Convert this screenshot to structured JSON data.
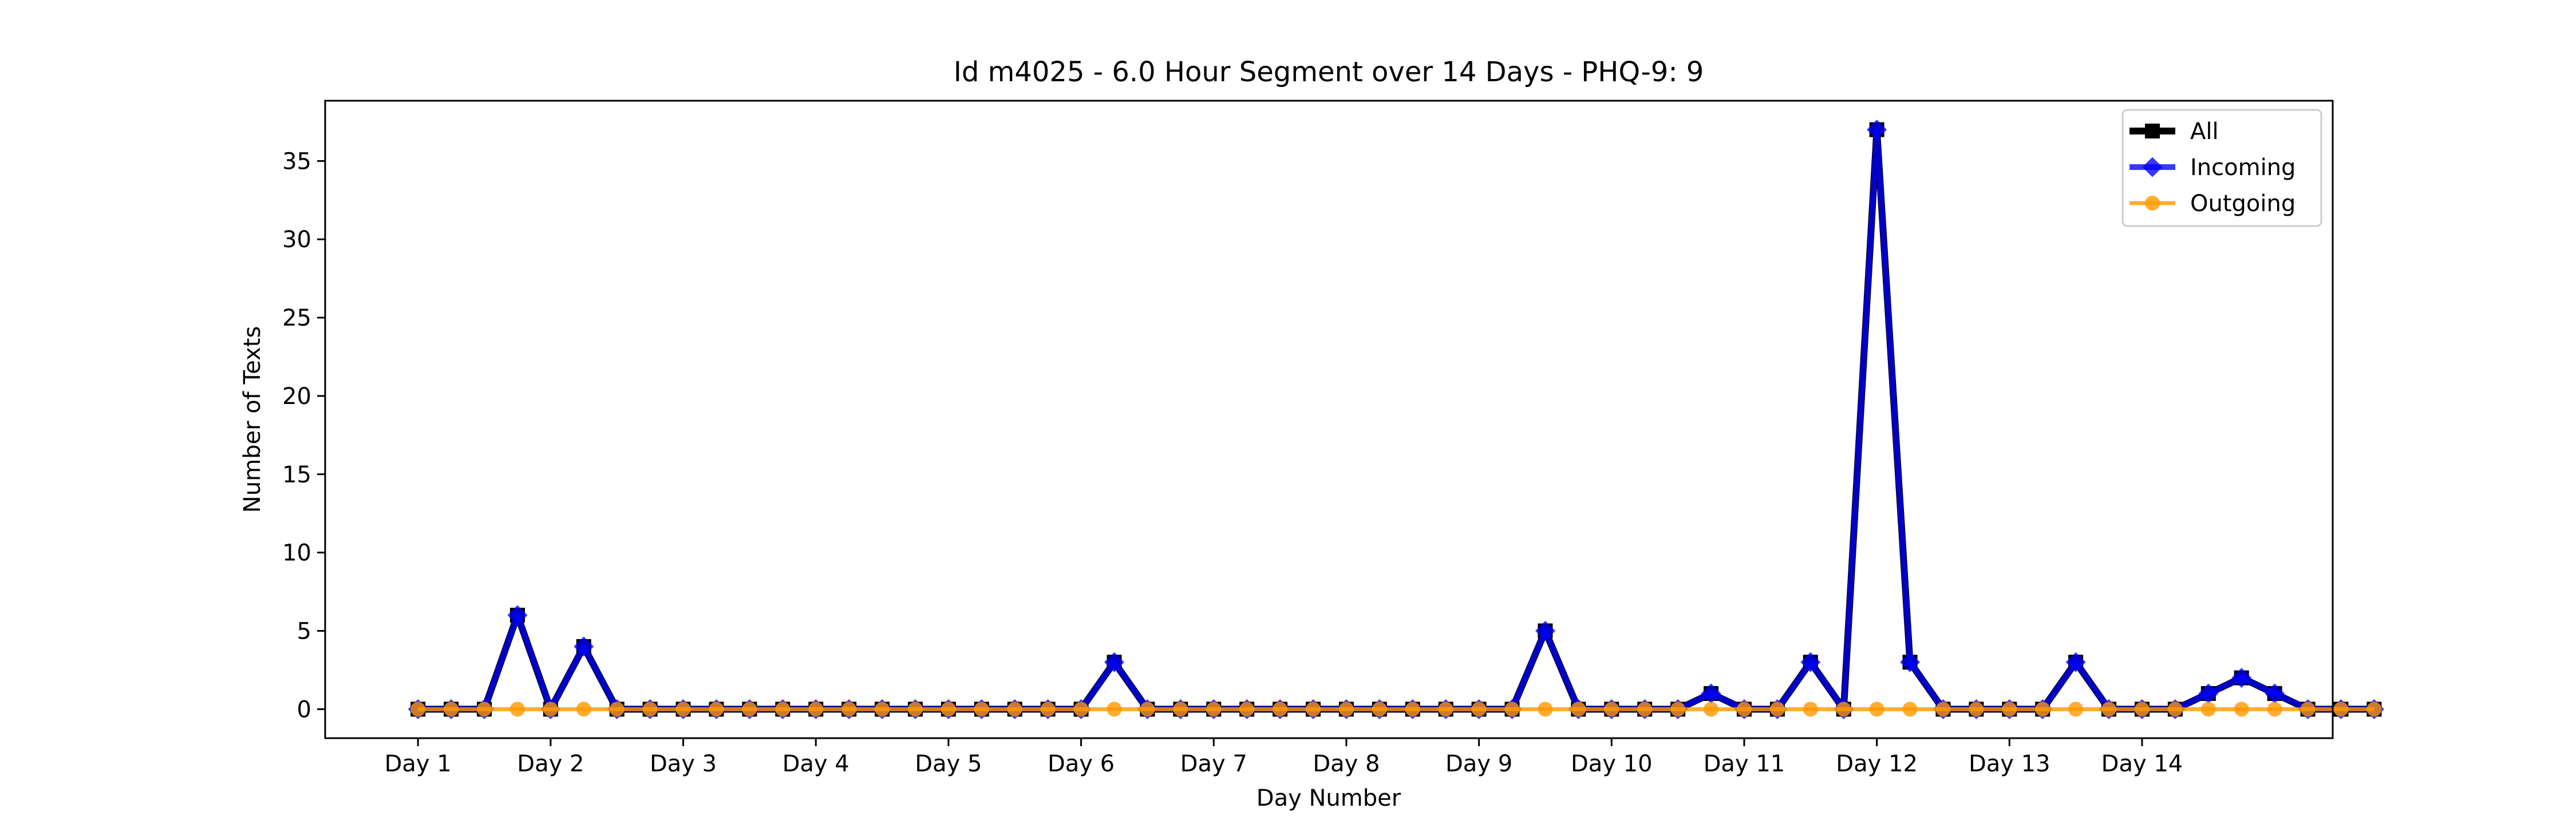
{
  "chart_data": {
    "type": "line",
    "title": "Id m4025 - 6.0 Hour Segment over 14 Days - PHQ-9: 9",
    "xlabel": "Day Number",
    "ylabel": "Number of Texts",
    "ylim": [
      -1.85,
      38.85
    ],
    "xlim": [
      -2.8,
      57.75
    ],
    "yticks": [
      0,
      5,
      10,
      15,
      20,
      25,
      30,
      35
    ],
    "xtick_positions": [
      0,
      4,
      8,
      12,
      16,
      20,
      24,
      28,
      32,
      36,
      40,
      44,
      48,
      52
    ],
    "xtick_labels": [
      "Day 1",
      "Day 2",
      "Day 3",
      "Day 4",
      "Day 5",
      "Day 6",
      "Day 7",
      "Day 8",
      "Day 9",
      "Day 10",
      "Day 11",
      "Day 12",
      "Day 13",
      "Day 14"
    ],
    "legend_position": "top-right",
    "grid": false,
    "series": [
      {
        "name": "All",
        "color": "#000000",
        "marker": "square",
        "values": [
          0,
          0,
          0,
          6,
          0,
          4,
          0,
          0,
          0,
          0,
          0,
          0,
          0,
          0,
          0,
          0,
          0,
          0,
          0,
          0,
          0,
          3,
          0,
          0,
          0,
          0,
          0,
          0,
          0,
          0,
          0,
          0,
          0,
          0,
          5,
          0,
          0,
          0,
          0,
          1,
          0,
          0,
          3,
          0,
          37,
          3,
          0,
          0,
          0,
          0,
          3,
          0,
          0,
          0,
          1,
          2,
          1,
          0,
          0,
          0
        ]
      },
      {
        "name": "Incoming",
        "color": "#0000ff",
        "marker": "diamond",
        "values": [
          0,
          0,
          0,
          6,
          0,
          4,
          0,
          0,
          0,
          0,
          0,
          0,
          0,
          0,
          0,
          0,
          0,
          0,
          0,
          0,
          0,
          3,
          0,
          0,
          0,
          0,
          0,
          0,
          0,
          0,
          0,
          0,
          0,
          0,
          5,
          0,
          0,
          0,
          0,
          1,
          0,
          0,
          3,
          0,
          37,
          3,
          0,
          0,
          0,
          0,
          3,
          0,
          0,
          0,
          1,
          2,
          1,
          0,
          0,
          0
        ]
      },
      {
        "name": "Outgoing",
        "color": "#ff9900",
        "marker": "circle",
        "values": [
          0,
          0,
          0,
          0,
          0,
          0,
          0,
          0,
          0,
          0,
          0,
          0,
          0,
          0,
          0,
          0,
          0,
          0,
          0,
          0,
          0,
          0,
          0,
          0,
          0,
          0,
          0,
          0,
          0,
          0,
          0,
          0,
          0,
          0,
          0,
          0,
          0,
          0,
          0,
          0,
          0,
          0,
          0,
          0,
          0,
          0,
          0,
          0,
          0,
          0,
          0,
          0,
          0,
          0,
          0,
          0,
          0,
          0,
          0,
          0
        ]
      }
    ]
  }
}
